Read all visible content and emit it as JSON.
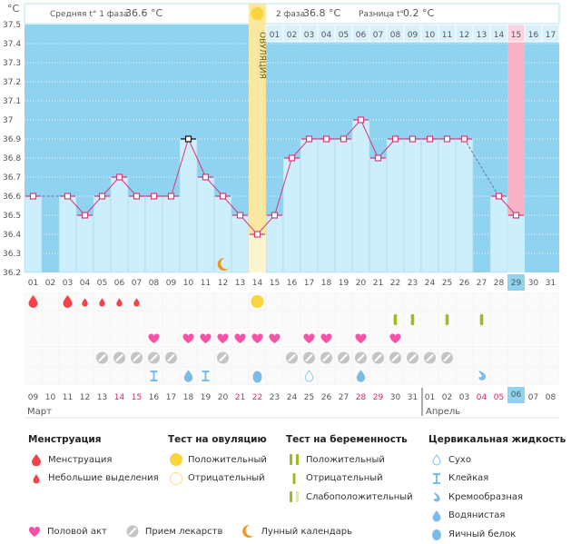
{
  "header": {
    "unit": "°C",
    "phase1_label": "Средняя t° 1 фаза",
    "phase1_value": "36.6 °C",
    "phase2_label": "2 фаза",
    "phase2_value": "36.8 °C",
    "diff_label": "Разница t°",
    "diff_value": "0.2 °C",
    "ovulation_label": "ОВУЛЯЦИЯ",
    "phase2_days": [
      "01",
      "02",
      "03",
      "04",
      "05",
      "06",
      "07",
      "08",
      "09",
      "10",
      "11",
      "12",
      "13",
      "14",
      "15",
      "16",
      "17"
    ],
    "phase2_highlight_day": "15"
  },
  "months": {
    "first": "Март",
    "second": "Апрель"
  },
  "chart_data": {
    "type": "line",
    "title": "",
    "xlabel": "",
    "ylabel": "°C",
    "ylim": [
      36.2,
      37.5
    ],
    "yticks": [
      "37.5",
      "37.4",
      "37.3",
      "37.2",
      "37.1",
      "37",
      "36.9",
      "36.8",
      "36.7",
      "36.6",
      "36.5",
      "36.4",
      "36.3",
      "36.2"
    ],
    "cycle_days": [
      "01",
      "02",
      "03",
      "04",
      "05",
      "06",
      "07",
      "08",
      "09",
      "10",
      "11",
      "12",
      "13",
      "14",
      "15",
      "16",
      "17",
      "18",
      "19",
      "20",
      "21",
      "22",
      "23",
      "24",
      "25",
      "26",
      "27",
      "28",
      "29",
      "30",
      "31"
    ],
    "calendar_dates": [
      "09",
      "10",
      "11",
      "12",
      "13",
      "14",
      "15",
      "16",
      "17",
      "18",
      "19",
      "20",
      "21",
      "22",
      "23",
      "24",
      "25",
      "26",
      "27",
      "28",
      "29",
      "30",
      "31",
      "01",
      "02",
      "03",
      "04",
      "05",
      "06",
      "07",
      "08"
    ],
    "weekend_dates_idx": [
      5,
      6,
      12,
      13,
      19,
      20,
      26,
      27
    ],
    "today_idx": 28,
    "ovulation_day_idx": 13,
    "period_start_idx": 28,
    "series": [
      {
        "name": "Базальная температура",
        "values": [
          36.6,
          null,
          36.6,
          36.5,
          36.6,
          36.7,
          36.6,
          36.6,
          36.6,
          36.9,
          36.7,
          36.6,
          36.5,
          36.4,
          36.5,
          36.8,
          36.9,
          36.9,
          36.9,
          37.0,
          36.8,
          36.9,
          36.9,
          36.9,
          36.9,
          36.9,
          null,
          36.6,
          36.5,
          null,
          null
        ],
        "color": "#d63a7a"
      }
    ],
    "selected_point_idx": 9,
    "markers": {
      "moon_idx": [
        11
      ],
      "menstruation": {
        "heavy": [
          0,
          2
        ],
        "light": [
          3,
          4,
          5,
          6
        ]
      },
      "ovulation_test_positive": [
        13
      ],
      "pregnancy_test_negative": [
        21,
        22,
        24,
        26
      ],
      "intercourse": [
        7,
        9,
        10,
        11,
        12,
        13,
        14,
        16,
        17,
        19,
        21
      ],
      "medication": [
        4,
        5,
        6,
        7,
        8,
        11,
        15,
        16,
        17,
        18,
        19,
        20,
        21,
        22,
        23,
        24
      ],
      "cervical": [
        {
          "idx": 7,
          "type": "sticky"
        },
        {
          "idx": 9,
          "type": "watery"
        },
        {
          "idx": 10,
          "type": "sticky"
        },
        {
          "idx": 13,
          "type": "eggwhite"
        },
        {
          "idx": 16,
          "type": "dry"
        },
        {
          "idx": 19,
          "type": "watery"
        },
        {
          "idx": 26,
          "type": "creamy"
        }
      ]
    }
  },
  "legend": {
    "menstruation": {
      "title": "Менструация",
      "items": [
        "Менструация",
        "Небольшие выделения"
      ]
    },
    "ovulation_test": {
      "title": "Тест на овуляцию",
      "items": [
        "Положительный",
        "Отрицательный"
      ]
    },
    "pregnancy_test": {
      "title": "Тест на беременность",
      "items": [
        "Положительный",
        "Отрицательный",
        "Слабоположительный"
      ]
    },
    "cervical": {
      "title": "Цервикальная жидкость",
      "items": [
        "Сухо",
        "Клейкая",
        "Кремообразная",
        "Водянистая",
        "Яичный белок"
      ]
    },
    "bottom": [
      "Половой акт",
      "Прием лекарств",
      "Лунный календарь"
    ]
  },
  "colors": {
    "bg_sky": "#8fd3f0",
    "bar_fill": "#cdeefb",
    "line": "#d63a7a",
    "ovulation": "#fbe8a0",
    "period": "#f9b3c6",
    "menstruation": "#f0444a",
    "heart": "#f552a8",
    "pill": "#c4c4c4",
    "cervical": "#7bbbe8",
    "preg_test": "#9bbb24",
    "ov_positive": "#f9d43a",
    "moon": "#f0961d"
  }
}
